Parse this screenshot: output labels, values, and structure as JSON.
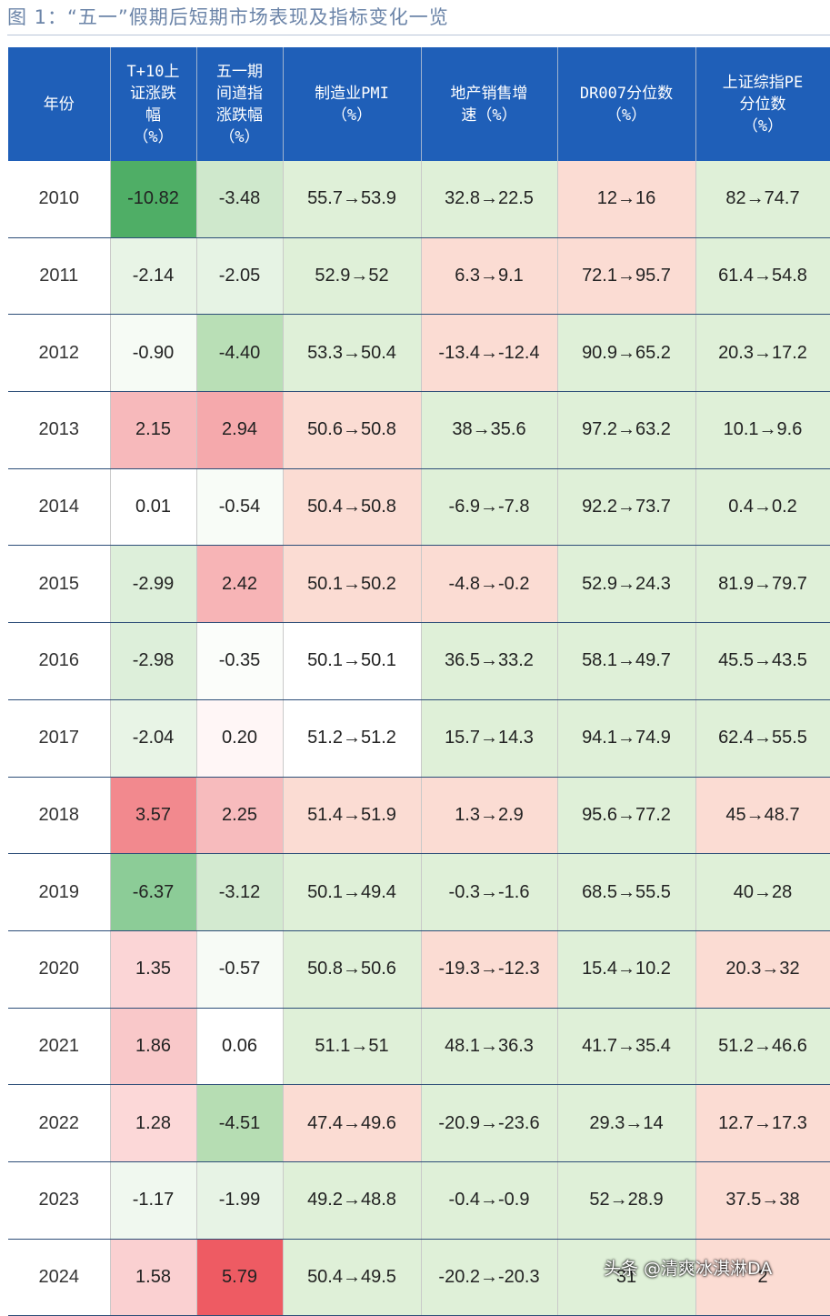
{
  "title": "图 1：“五一”假期后短期市场表现及指标变化一览",
  "colors": {
    "header_bg": "#1f5fb8",
    "green_strong": "#5cb873",
    "green_light": "#d9efd3",
    "red_strong": "#f08a8f",
    "red_light": "#fbddd7"
  },
  "headers": [
    {
      "lines": [
        "年份"
      ]
    },
    {
      "lines": [
        "T+10上",
        "证涨跌",
        "幅",
        "（%）"
      ]
    },
    {
      "lines": [
        "五一期",
        "间道指",
        "涨跌幅",
        "（%）"
      ]
    },
    {
      "lines": [
        "制造业PMI",
        "（%）"
      ]
    },
    {
      "lines": [
        "地产销售增",
        "速（%）"
      ]
    },
    {
      "lines": [
        "DR007分位数",
        "（%）"
      ]
    },
    {
      "lines": [
        "上证综指PE",
        "分位数",
        "（%）"
      ]
    }
  ],
  "rows": [
    {
      "year": "2010",
      "cells": [
        {
          "v": "-10.82",
          "c": "#4fae66"
        },
        {
          "v": "-3.48",
          "c": "#cfe8cc"
        },
        {
          "v": "55.7→53.9",
          "c": "#dff0d8"
        },
        {
          "v": "32.8→22.5",
          "c": "#dff0d8"
        },
        {
          "v": "12→16",
          "c": "#fbdcd3"
        },
        {
          "v": "82→74.7",
          "c": "#dff0d8"
        }
      ]
    },
    {
      "year": "2011",
      "cells": [
        {
          "v": "-2.14",
          "c": "#e8f4e6"
        },
        {
          "v": "-2.05",
          "c": "#e6f3e4"
        },
        {
          "v": "52.9→52",
          "c": "#dff0d8"
        },
        {
          "v": "6.3→9.1",
          "c": "#fbdcd3"
        },
        {
          "v": "72.1→95.7",
          "c": "#fbdcd3"
        },
        {
          "v": "61.4→54.8",
          "c": "#dff0d8"
        }
      ]
    },
    {
      "year": "2012",
      "cells": [
        {
          "v": "-0.90",
          "c": "#f6fbf5"
        },
        {
          "v": "-4.40",
          "c": "#b9dfb6"
        },
        {
          "v": "53.3→50.4",
          "c": "#dff0d8"
        },
        {
          "v": "-13.4→-12.4",
          "c": "#fbdcd3"
        },
        {
          "v": "90.9→65.2",
          "c": "#dff0d8"
        },
        {
          "v": "20.3→17.2",
          "c": "#dff0d8"
        }
      ]
    },
    {
      "year": "2013",
      "cells": [
        {
          "v": "2.15",
          "c": "#f7b9bb"
        },
        {
          "v": "2.94",
          "c": "#f5a9ac"
        },
        {
          "v": "50.6→50.8",
          "c": "#fbdcd3"
        },
        {
          "v": "38→35.6",
          "c": "#dff0d8"
        },
        {
          "v": "97.2→63.2",
          "c": "#dff0d8"
        },
        {
          "v": "10.1→9.6",
          "c": "#dff0d8"
        }
      ]
    },
    {
      "year": "2014",
      "cells": [
        {
          "v": "0.01",
          "c": "#ffffff"
        },
        {
          "v": "-0.54",
          "c": "#f8fcf7"
        },
        {
          "v": "50.4→50.8",
          "c": "#fbdcd3"
        },
        {
          "v": "-6.9→-7.8",
          "c": "#dff0d8"
        },
        {
          "v": "92.2→73.7",
          "c": "#dff0d8"
        },
        {
          "v": "0.4→0.2",
          "c": "#dff0d8"
        }
      ]
    },
    {
      "year": "2015",
      "cells": [
        {
          "v": "-2.99",
          "c": "#ddefda"
        },
        {
          "v": "2.42",
          "c": "#f7b4b6"
        },
        {
          "v": "50.1→50.2",
          "c": "#fbdcd3"
        },
        {
          "v": "-4.8→-0.2",
          "c": "#fbdcd3"
        },
        {
          "v": "52.9→24.3",
          "c": "#dff0d8"
        },
        {
          "v": "81.9→79.7",
          "c": "#dff0d8"
        }
      ]
    },
    {
      "year": "2016",
      "cells": [
        {
          "v": "-2.98",
          "c": "#ddefda"
        },
        {
          "v": "-0.35",
          "c": "#fbfdfa"
        },
        {
          "v": "50.1→50.1",
          "c": "#ffffff"
        },
        {
          "v": "36.5→33.2",
          "c": "#dff0d8"
        },
        {
          "v": "58.1→49.7",
          "c": "#dff0d8"
        },
        {
          "v": "45.5→43.5",
          "c": "#dff0d8"
        }
      ]
    },
    {
      "year": "2017",
      "cells": [
        {
          "v": "-2.04",
          "c": "#e8f4e6"
        },
        {
          "v": "0.20",
          "c": "#fff6f6"
        },
        {
          "v": "51.2→51.2",
          "c": "#ffffff"
        },
        {
          "v": "15.7→14.3",
          "c": "#dff0d8"
        },
        {
          "v": "94.1→74.9",
          "c": "#dff0d8"
        },
        {
          "v": "62.4→55.5",
          "c": "#dff0d8"
        }
      ]
    },
    {
      "year": "2018",
      "cells": [
        {
          "v": "3.57",
          "c": "#f2898e"
        },
        {
          "v": "2.25",
          "c": "#f7bbbd"
        },
        {
          "v": "51.4→51.9",
          "c": "#fbdcd3"
        },
        {
          "v": "1.3→2.9",
          "c": "#fbdcd3"
        },
        {
          "v": "95.6→77.2",
          "c": "#dff0d8"
        },
        {
          "v": "45→48.7",
          "c": "#fbdcd3"
        }
      ]
    },
    {
      "year": "2019",
      "cells": [
        {
          "v": "-6.37",
          "c": "#8ccc97"
        },
        {
          "v": "-3.12",
          "c": "#d3ead0"
        },
        {
          "v": "50.1→49.4",
          "c": "#dff0d8"
        },
        {
          "v": "-0.3→-1.6",
          "c": "#dff0d8"
        },
        {
          "v": "68.5→55.5",
          "c": "#dff0d8"
        },
        {
          "v": "40→28",
          "c": "#dff0d8"
        }
      ]
    },
    {
      "year": "2020",
      "cells": [
        {
          "v": "1.35",
          "c": "#fbd5d6"
        },
        {
          "v": "-0.57",
          "c": "#f7fbf6"
        },
        {
          "v": "50.8→50.6",
          "c": "#dff0d8"
        },
        {
          "v": "-19.3→-12.3",
          "c": "#fbdcd3"
        },
        {
          "v": "15.4→10.2",
          "c": "#dff0d8"
        },
        {
          "v": "20.3→32",
          "c": "#fbdcd3"
        }
      ]
    },
    {
      "year": "2021",
      "cells": [
        {
          "v": "1.86",
          "c": "#f9c8c9"
        },
        {
          "v": "0.06",
          "c": "#ffffff"
        },
        {
          "v": "51.1→51",
          "c": "#dff0d8"
        },
        {
          "v": "48.1→36.3",
          "c": "#dff0d8"
        },
        {
          "v": "41.7→35.4",
          "c": "#dff0d8"
        },
        {
          "v": "51.2→46.6",
          "c": "#dff0d8"
        }
      ]
    },
    {
      "year": "2022",
      "cells": [
        {
          "v": "1.28",
          "c": "#fcd8d8"
        },
        {
          "v": "-4.51",
          "c": "#b6ddb3"
        },
        {
          "v": "47.4→49.6",
          "c": "#fbdcd3"
        },
        {
          "v": "-20.9→-23.6",
          "c": "#dff0d8"
        },
        {
          "v": "29.3→14",
          "c": "#dff0d8"
        },
        {
          "v": "12.7→17.3",
          "c": "#fbdcd3"
        }
      ]
    },
    {
      "year": "2023",
      "cells": [
        {
          "v": "-1.17",
          "c": "#f0f8ef"
        },
        {
          "v": "-1.99",
          "c": "#e7f3e5"
        },
        {
          "v": "49.2→48.8",
          "c": "#dff0d8"
        },
        {
          "v": "-0.4→-0.9",
          "c": "#dff0d8"
        },
        {
          "v": "52→28.9",
          "c": "#dff0d8"
        },
        {
          "v": "37.5→38",
          "c": "#fbdcd3"
        }
      ]
    },
    {
      "year": "2024",
      "cells": [
        {
          "v": "1.58",
          "c": "#fad0d1"
        },
        {
          "v": "5.79",
          "c": "#ee5b63"
        },
        {
          "v": "50.4→49.5",
          "c": "#dff0d8"
        },
        {
          "v": "-20.2→-20.3",
          "c": "#dff0d8"
        },
        {
          "v": "31",
          "c": "#dff0d8"
        },
        {
          "v": "2",
          "c": "#fbdcd3"
        }
      ]
    }
  ],
  "watermark": "头条 @清爽冰淇淋DA"
}
